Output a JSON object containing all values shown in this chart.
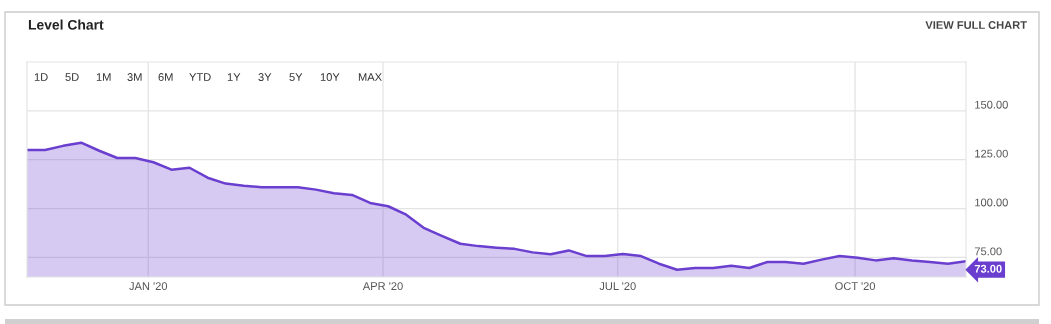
{
  "chart_data": {
    "type": "area",
    "title": "Level Chart",
    "annotations": [
      "VIEW FULL CHART",
      "1D",
      "5D",
      "1M",
      "3M",
      "6M",
      "YTD",
      "1Y",
      "3Y",
      "5Y",
      "10Y",
      "MAX",
      {
        "text": "73.00",
        "x": "2020-11-13",
        "y": 73
      }
    ],
    "x": [
      "2019-11-15",
      "2019-11-22",
      "2019-11-29",
      "2019-12-06",
      "2019-12-13",
      "2019-12-20",
      "2019-12-27",
      "2020-01-03",
      "2020-01-10",
      "2020-01-17",
      "2020-01-24",
      "2020-01-31",
      "2020-02-07",
      "2020-02-14",
      "2020-02-21",
      "2020-02-28",
      "2020-03-06",
      "2020-03-13",
      "2020-03-20",
      "2020-03-27",
      "2020-04-03",
      "2020-04-10",
      "2020-04-17",
      "2020-04-24",
      "2020-05-01",
      "2020-05-08",
      "2020-05-15",
      "2020-05-22",
      "2020-05-29",
      "2020-06-05",
      "2020-06-12",
      "2020-06-19",
      "2020-06-26",
      "2020-07-03",
      "2020-07-10",
      "2020-07-17",
      "2020-07-24",
      "2020-07-31",
      "2020-08-07",
      "2020-08-14",
      "2020-08-21",
      "2020-08-28",
      "2020-09-04",
      "2020-09-11",
      "2020-09-18",
      "2020-09-25",
      "2020-10-02",
      "2020-10-09",
      "2020-10-16",
      "2020-10-23",
      "2020-10-30",
      "2020-11-06",
      "2020-11-13"
    ],
    "series": [
      {
        "color": "#6a3fcf",
        "values": [
          130.0,
          130.0,
          132.1,
          133.7,
          129.6,
          125.9,
          125.9,
          123.7,
          119.9,
          120.9,
          115.8,
          112.8,
          111.7,
          110.9,
          110.9,
          110.9,
          109.7,
          107.9,
          107.0,
          102.9,
          101.2,
          96.9,
          90.0,
          85.9,
          82.0,
          80.8,
          80.0,
          79.4,
          77.6,
          76.6,
          78.6,
          75.7,
          75.7,
          76.8,
          75.7,
          71.8,
          68.7,
          69.6,
          69.6,
          70.7,
          69.6,
          72.7,
          72.7,
          71.8,
          73.9,
          75.7,
          74.8,
          73.5,
          74.6,
          73.5,
          72.7,
          71.8,
          73.0
        ]
      }
    ],
    "xlim": [
      "2019-11-15",
      "2020-11-13"
    ],
    "xticks": [
      {
        "value": "2020-01-01",
        "label": "JAN '20"
      },
      {
        "value": "2020-04-01",
        "label": "APR '20"
      },
      {
        "value": "2020-07-01",
        "label": "JUL '20"
      },
      {
        "value": "2020-10-01",
        "label": "OCT '20"
      }
    ],
    "ylim": [
      65,
      175
    ],
    "yticks": [
      {
        "value": 75,
        "label": "75.00"
      },
      {
        "value": 100,
        "label": "100.00"
      },
      {
        "value": 125,
        "label": "125.00"
      },
      {
        "value": 150,
        "label": "150.00"
      }
    ],
    "grid": true,
    "legend": false
  }
}
